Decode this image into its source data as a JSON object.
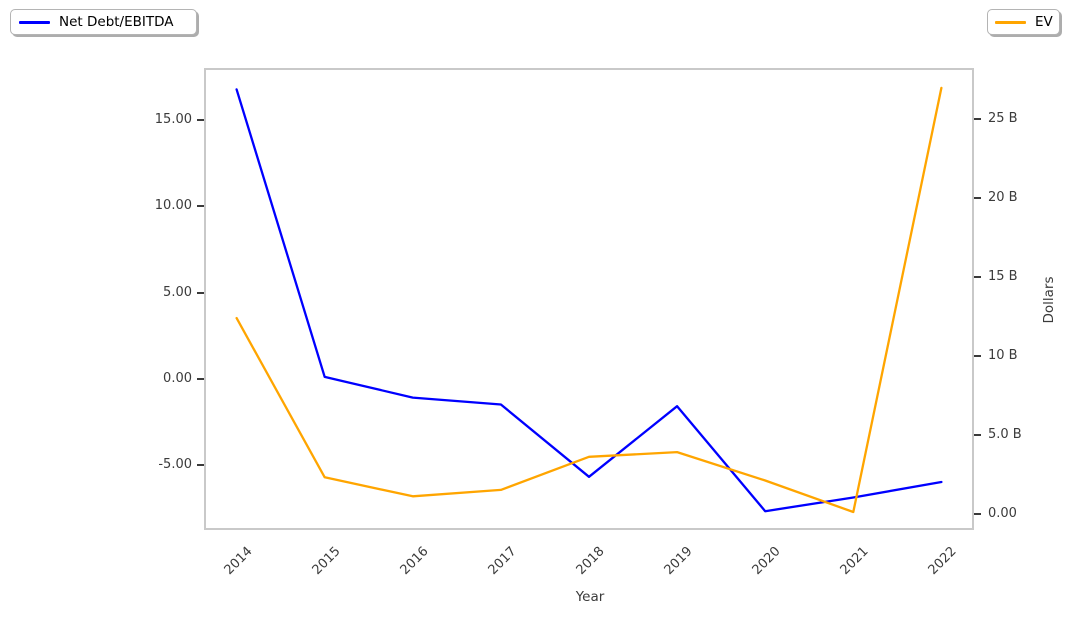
{
  "chart_data": {
    "type": "line",
    "title": "",
    "xlabel": "Year",
    "x_categories": [
      "2014",
      "2015",
      "2016",
      "2017",
      "2018",
      "2019",
      "2020",
      "2021",
      "2022"
    ],
    "xlim": [
      -0.37,
      8.37
    ],
    "grid": false,
    "legend_positions": [
      "upper left",
      "upper right"
    ],
    "left_axis": {
      "ylim": [
        -8.79,
        18.04
      ],
      "ticks": [
        {
          "value": 15,
          "label": "15.00"
        },
        {
          "value": 10,
          "label": "10.00"
        },
        {
          "value": 5,
          "label": "5.00"
        },
        {
          "value": 0,
          "label": "0.00"
        },
        {
          "value": -5,
          "label": "-5.00"
        }
      ]
    },
    "right_axis": {
      "label": "Dollars",
      "unit": "billions of dollars",
      "ylim": [
        -1.04,
        28.26
      ],
      "ticks": [
        {
          "value": 25,
          "label": "25 B"
        },
        {
          "value": 20,
          "label": "20 B"
        },
        {
          "value": 15,
          "label": "15 B"
        },
        {
          "value": 10,
          "label": "10 B"
        },
        {
          "value": 5,
          "label": "5.0 B"
        },
        {
          "value": 0,
          "label": "0.00"
        }
      ]
    },
    "series": [
      {
        "name": "Net Debt/EBITDA",
        "axis": "left",
        "color": "#0000ff",
        "values": [
          16.8,
          0.1,
          -1.1,
          -1.5,
          -5.7,
          -1.6,
          -7.7,
          -6.9,
          -6.0
        ]
      },
      {
        "name": "EV",
        "axis": "right",
        "color": "#ffa500",
        "values": [
          12.4,
          2.3,
          1.1,
          1.5,
          3.6,
          3.9,
          2.1,
          0.1,
          27.0
        ]
      }
    ]
  }
}
